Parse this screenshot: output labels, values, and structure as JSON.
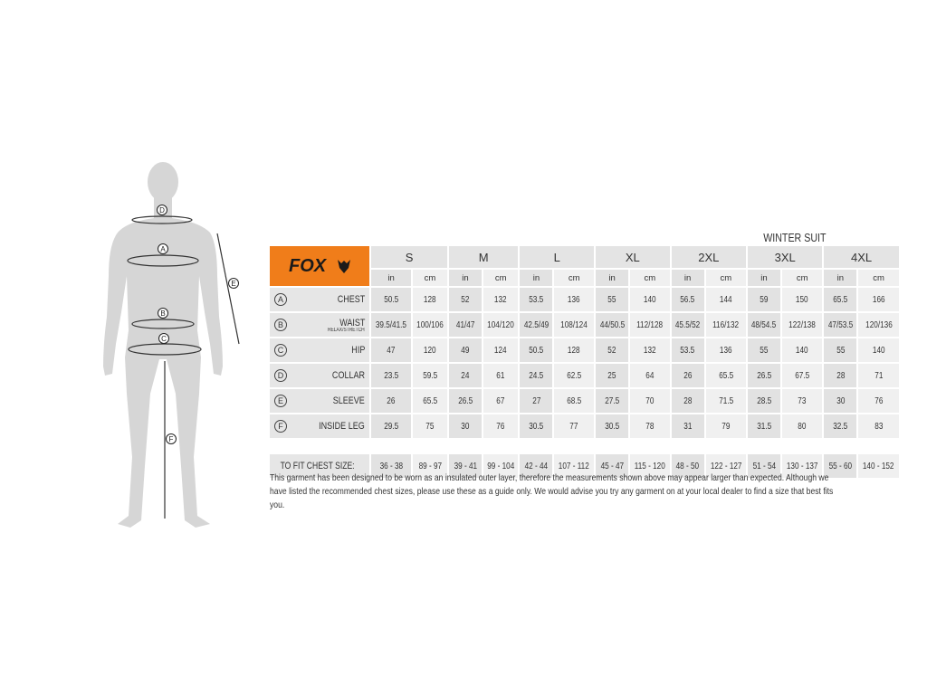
{
  "title": "WINTER SUIT",
  "logo_text": "FOX",
  "brand_color": "#f07d1a",
  "sizes": [
    "S",
    "M",
    "L",
    "XL",
    "2XL",
    "3XL",
    "4XL"
  ],
  "units": [
    "in",
    "cm"
  ],
  "rows": [
    {
      "letter": "A",
      "label": "CHEST",
      "sub": "",
      "values": [
        "50.5",
        "128",
        "52",
        "132",
        "53.5",
        "136",
        "55",
        "140",
        "56.5",
        "144",
        "59",
        "150",
        "65.5",
        "166"
      ]
    },
    {
      "letter": "B",
      "label": "WAIST",
      "sub": "RELAX/STRETCH",
      "values": [
        "39.5/41.5",
        "100/106",
        "41/47",
        "104/120",
        "42.5/49",
        "108/124",
        "44/50.5",
        "112/128",
        "45.5/52",
        "116/132",
        "48/54.5",
        "122/138",
        "47/53.5",
        "120/136"
      ]
    },
    {
      "letter": "C",
      "label": "HIP",
      "sub": "",
      "values": [
        "47",
        "120",
        "49",
        "124",
        "50.5",
        "128",
        "52",
        "132",
        "53.5",
        "136",
        "55",
        "140",
        "55",
        "140"
      ]
    },
    {
      "letter": "D",
      "label": "COLLAR",
      "sub": "",
      "values": [
        "23.5",
        "59.5",
        "24",
        "61",
        "24.5",
        "62.5",
        "25",
        "64",
        "26",
        "65.5",
        "26.5",
        "67.5",
        "28",
        "71"
      ]
    },
    {
      "letter": "E",
      "label": "SLEEVE",
      "sub": "",
      "values": [
        "26",
        "65.5",
        "26.5",
        "67",
        "27",
        "68.5",
        "27.5",
        "70",
        "28",
        "71.5",
        "28.5",
        "73",
        "30",
        "76"
      ]
    },
    {
      "letter": "F",
      "label": "INSIDE LEG",
      "sub": "",
      "values": [
        "29.5",
        "75",
        "30",
        "76",
        "30.5",
        "77",
        "30.5",
        "78",
        "31",
        "79",
        "31.5",
        "80",
        "32.5",
        "83"
      ]
    }
  ],
  "chest_fit": {
    "label": "TO FIT CHEST SIZE:",
    "values": [
      "36 - 38",
      "89 - 97",
      "39 - 41",
      "99 - 104",
      "42 - 44",
      "107 - 112",
      "45 - 47",
      "115 - 120",
      "48 - 50",
      "122 - 127",
      "51 - 54",
      "130 - 137",
      "55 - 60",
      "140 - 152"
    ]
  },
  "note": "This garment has been designed to be worn as an insulated outer layer, therefore the measurements shown above may appear larger than expected. Although we have listed the recommended chest sizes, please use these as a guide only. We would advise you try any garment on at your local dealer to find a size that best fits you.",
  "figure_labels": [
    "D",
    "A",
    "B",
    "C",
    "E",
    "F"
  ]
}
